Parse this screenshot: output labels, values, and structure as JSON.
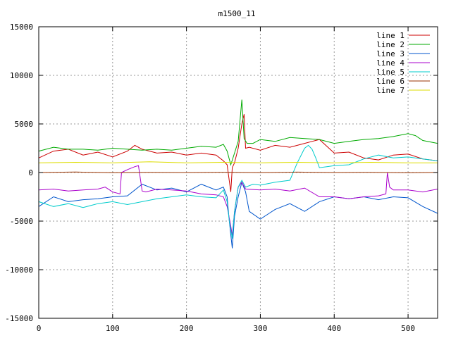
{
  "chart_data": {
    "type": "line",
    "title": "m1500_11",
    "xlabel": "",
    "ylabel": "",
    "xlim": [
      0,
      540
    ],
    "ylim": [
      -15000,
      15000
    ],
    "xticks": [
      0,
      100,
      200,
      300,
      400,
      500
    ],
    "yticks": [
      -15000,
      -10000,
      -5000,
      0,
      5000,
      10000,
      15000
    ],
    "grid": true,
    "legend_position": "top-right",
    "series": [
      {
        "name": "line 1",
        "color": "#cc0000",
        "x": [
          0,
          20,
          40,
          60,
          80,
          100,
          120,
          130,
          140,
          160,
          180,
          200,
          220,
          240,
          250,
          255,
          260,
          262,
          265,
          270,
          275,
          278,
          280,
          285,
          300,
          320,
          340,
          360,
          370,
          380,
          400,
          420,
          440,
          460,
          480,
          500,
          520,
          540
        ],
        "y": [
          1500,
          2200,
          2400,
          1800,
          2100,
          1600,
          2200,
          2800,
          2400,
          2000,
          2100,
          1800,
          2000,
          1800,
          1200,
          800,
          -2000,
          500,
          1000,
          2500,
          5000,
          6000,
          2500,
          2600,
          2300,
          2800,
          2600,
          3000,
          3200,
          3400,
          2000,
          2100,
          1500,
          1300,
          1800,
          1900,
          1400,
          1200
        ]
      },
      {
        "name": "line 2",
        "color": "#00aa00",
        "x": [
          0,
          20,
          40,
          60,
          80,
          100,
          120,
          140,
          160,
          180,
          200,
          220,
          240,
          250,
          255,
          260,
          265,
          270,
          275,
          278,
          282,
          290,
          300,
          320,
          340,
          360,
          380,
          400,
          420,
          440,
          460,
          480,
          500,
          510,
          520,
          540
        ],
        "y": [
          2200,
          2600,
          2400,
          2400,
          2300,
          2500,
          2400,
          2300,
          2400,
          2300,
          2500,
          2700,
          2600,
          2900,
          2200,
          800,
          2000,
          3200,
          7500,
          3500,
          3000,
          3000,
          3400,
          3200,
          3600,
          3500,
          3400,
          3000,
          3200,
          3400,
          3500,
          3700,
          4000,
          3800,
          3300,
          3000
        ]
      },
      {
        "name": "line 3",
        "color": "#0055cc",
        "x": [
          0,
          20,
          40,
          60,
          80,
          100,
          120,
          140,
          160,
          180,
          200,
          220,
          240,
          250,
          255,
          258,
          262,
          265,
          270,
          275,
          280,
          285,
          300,
          320,
          340,
          360,
          380,
          400,
          420,
          440,
          460,
          480,
          500,
          520,
          540
        ],
        "y": [
          -3500,
          -2500,
          -3000,
          -2800,
          -2700,
          -2500,
          -2400,
          -1200,
          -1800,
          -1600,
          -2000,
          -1200,
          -1800,
          -1500,
          -2500,
          -5000,
          -7800,
          -4500,
          -2500,
          -1000,
          -2000,
          -4000,
          -4800,
          -3800,
          -3200,
          -4000,
          -3000,
          -2500,
          -2700,
          -2500,
          -2800,
          -2500,
          -2600,
          -3500,
          -4200
        ]
      },
      {
        "name": "line 4",
        "color": "#aa00cc",
        "x": [
          0,
          20,
          40,
          60,
          80,
          90,
          100,
          110,
          112,
          120,
          130,
          135,
          140,
          145,
          160,
          180,
          200,
          220,
          240,
          250,
          255,
          260,
          262,
          265,
          270,
          275,
          280,
          300,
          320,
          340,
          360,
          380,
          400,
          420,
          440,
          460,
          470,
          472,
          475,
          480,
          500,
          520,
          540
        ],
        "y": [
          -1800,
          -1700,
          -1900,
          -1800,
          -1700,
          -1500,
          -2000,
          -2200,
          0,
          300,
          600,
          700,
          -1900,
          -2000,
          -1700,
          -1800,
          -1900,
          -2200,
          -2300,
          -2500,
          -3500,
          -5500,
          -6500,
          -4000,
          -1500,
          -1000,
          -1700,
          -1800,
          -1700,
          -1900,
          -1600,
          -2500,
          -2500,
          -2700,
          -2500,
          -2400,
          -2200,
          0,
          -1500,
          -1800,
          -1800,
          -2000,
          -1700
        ]
      },
      {
        "name": "line 5",
        "color": "#00cccc",
        "x": [
          0,
          20,
          40,
          60,
          80,
          100,
          120,
          140,
          160,
          180,
          200,
          220,
          240,
          250,
          255,
          258,
          262,
          265,
          270,
          275,
          280,
          290,
          300,
          320,
          340,
          350,
          360,
          365,
          370,
          375,
          380,
          390,
          400,
          420,
          440,
          460,
          480,
          500,
          520,
          540
        ],
        "y": [
          -3000,
          -3500,
          -3200,
          -3600,
          -3200,
          -3000,
          -3300,
          -3000,
          -2700,
          -2500,
          -2300,
          -2500,
          -2600,
          -1800,
          -3000,
          -5000,
          -6800,
          -4000,
          -1500,
          -800,
          -1500,
          -1200,
          -1300,
          -1000,
          -800,
          1000,
          2500,
          2800,
          2400,
          1500,
          500,
          600,
          700,
          800,
          1400,
          1800,
          1500,
          1600,
          1400,
          1200
        ]
      },
      {
        "name": "line 6",
        "color": "#993300",
        "x": [
          0,
          50,
          100,
          150,
          200,
          250,
          300,
          350,
          400,
          450,
          500,
          540
        ],
        "y": [
          0,
          50,
          -20,
          20,
          0,
          30,
          -10,
          40,
          0,
          20,
          -30,
          10
        ]
      },
      {
        "name": "line 7",
        "color": "#dddd00",
        "x": [
          0,
          50,
          100,
          150,
          200,
          250,
          300,
          350,
          400,
          450,
          500,
          540
        ],
        "y": [
          1000,
          1050,
          1000,
          1100,
          1000,
          1050,
          1000,
          1050,
          1000,
          1050,
          1000,
          1000
        ]
      }
    ]
  }
}
